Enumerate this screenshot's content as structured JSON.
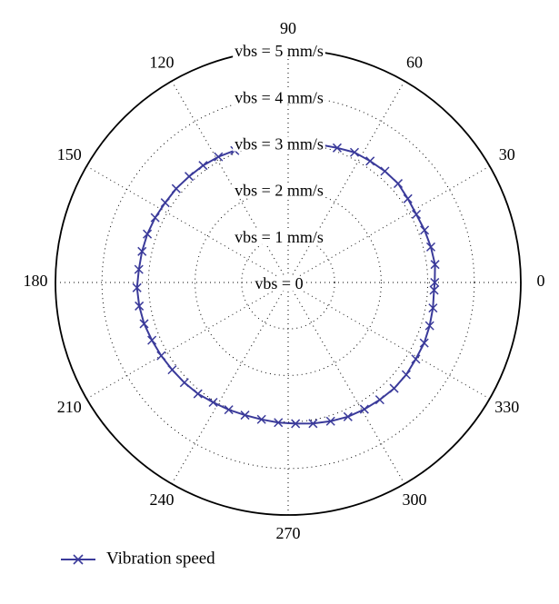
{
  "chart_data": {
    "type": "polar-line",
    "title": "",
    "angle_unit": "degrees",
    "angle_ticks": [
      0,
      30,
      60,
      90,
      120,
      150,
      180,
      210,
      240,
      270,
      300,
      330
    ],
    "angle_tick_labels": [
      "0",
      "30",
      "60",
      "90",
      "120",
      "150",
      "180",
      "210",
      "240",
      "270",
      "300",
      "330"
    ],
    "radial_range": [
      0,
      5
    ],
    "radial_ticks": [
      0,
      1,
      2,
      3,
      4,
      5
    ],
    "radial_tick_labels": [
      "vbs = 0",
      "vbs = 1 mm/s",
      "vbs = 2 mm/s",
      "vbs = 3 mm/s",
      "vbs = 4 mm/s",
      "vbs = 5 mm/s"
    ],
    "grid": true,
    "legend_position": "bottom-left",
    "series": [
      {
        "name": "Vibration speed",
        "color": "#3a3a9a",
        "marker": "x",
        "theta": [
          0,
          7,
          14,
          21,
          28,
          35,
          42,
          49,
          56,
          63,
          70,
          77,
          84,
          91,
          98,
          105,
          112,
          119,
          126,
          133,
          140,
          147,
          154,
          161,
          168,
          175,
          182,
          189,
          196,
          203,
          210,
          217,
          224,
          231,
          238,
          245,
          252,
          259,
          266,
          273,
          280,
          287,
          294,
          301,
          308,
          315,
          322,
          329,
          336,
          343,
          350,
          357
        ],
        "r": [
          3.15,
          3.18,
          3.16,
          3.14,
          3.12,
          3.14,
          3.18,
          3.17,
          3.15,
          3.14,
          3.08,
          3.04,
          3.02,
          3.0,
          3.02,
          3.03,
          3.06,
          3.09,
          3.11,
          3.12,
          3.14,
          3.15,
          3.18,
          3.2,
          3.21,
          3.22,
          3.25,
          3.24,
          3.22,
          3.18,
          3.15,
          3.12,
          3.1,
          3.08,
          3.04,
          3.02,
          3.0,
          3.0,
          3.02,
          3.04,
          3.08,
          3.12,
          3.16,
          3.18,
          3.2,
          3.22,
          3.22,
          3.2,
          3.2,
          3.18,
          3.16,
          3.14
        ]
      }
    ]
  }
}
